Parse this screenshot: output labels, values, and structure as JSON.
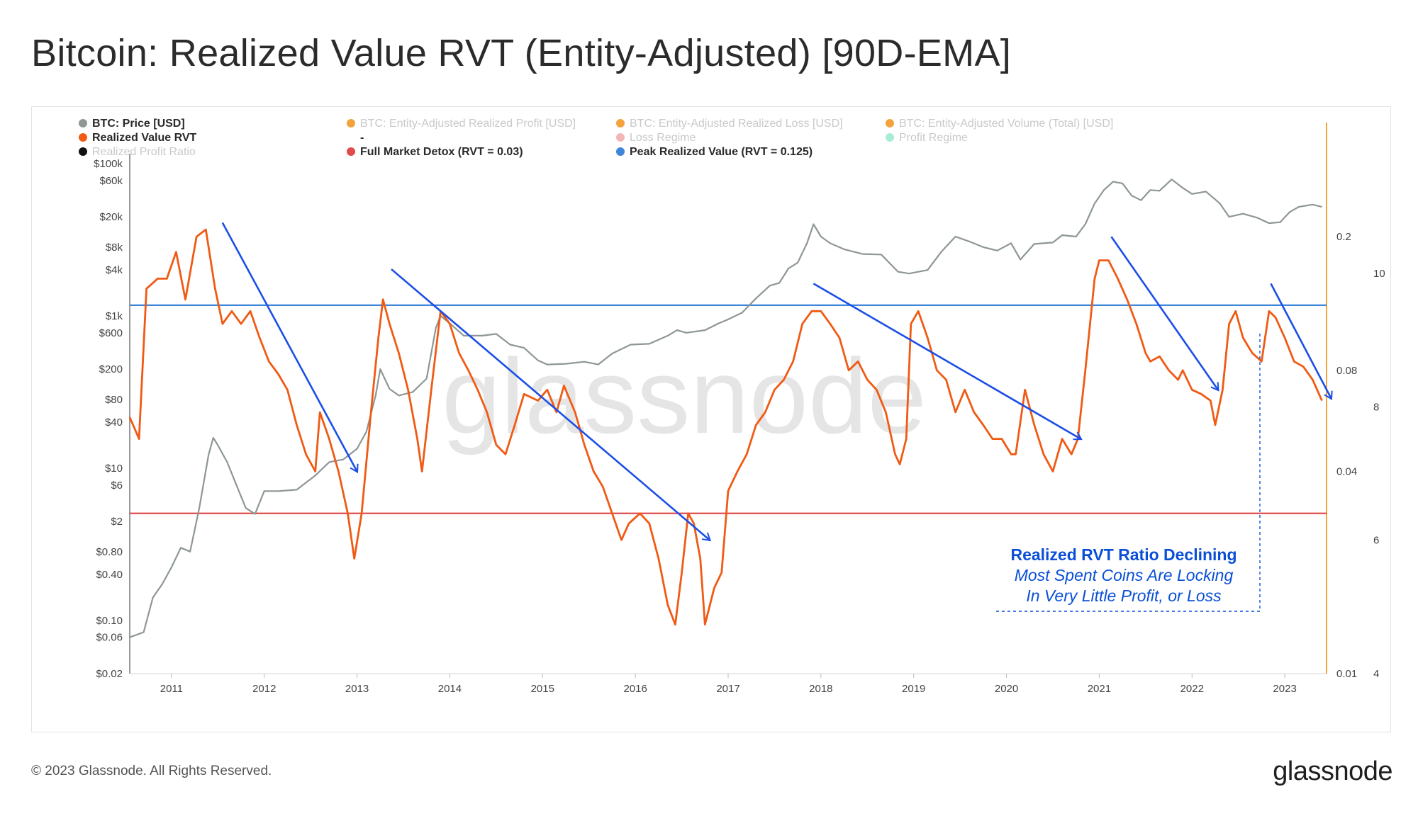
{
  "page": {
    "title": "Bitcoin: Realized Value RVT (Entity-Adjusted) [90D-EMA]",
    "copyright": "© 2023 Glassnode. All Rights Reserved.",
    "brand": "glassnode",
    "watermark": "glassnode"
  },
  "colors": {
    "price": "#8e9696",
    "rvt": "#f05a14",
    "detox": "#e04b4b",
    "peak": "#3f86d9",
    "arrow": "#1b4fe6",
    "axis_right": "#f4a23c",
    "annotation": "#0a4fd6"
  },
  "chart_data": {
    "type": "line",
    "title": "Bitcoin: Realized Value RVT (Entity-Adjusted) [90D-EMA]",
    "legend": [
      {
        "label": "BTC: Price [USD]",
        "color": "#8e9696",
        "active": true
      },
      {
        "label": "BTC: Entity-Adjusted Realized Profit [USD]",
        "color": "#f4a23c",
        "active": false
      },
      {
        "label": "BTC: Entity-Adjusted Realized Loss [USD]",
        "color": "#f4a23c",
        "active": false
      },
      {
        "label": "BTC: Entity-Adjusted Volume (Total) [USD]",
        "color": "#f4a23c",
        "active": false
      },
      {
        "label": "Realized Value RVT",
        "color": "#f05a14",
        "active": true
      },
      {
        "label": "-",
        "color": "",
        "active": true
      },
      {
        "label": "Loss Regime",
        "color": "#f3b6b6",
        "active": false
      },
      {
        "label": "Profit Regime",
        "color": "#a9ecd5",
        "active": false
      },
      {
        "label": "Realized Profit Ratio",
        "color": "#111111",
        "active": false
      },
      {
        "label": "Full Market Detox (RVT = 0.03)",
        "color": "#e04b4b",
        "active": true
      },
      {
        "label": "Peak Realized Value (RVT = 0.125)",
        "color": "#3f86d9",
        "active": true
      }
    ],
    "x_ticks": [
      "2011",
      "2012",
      "2013",
      "2014",
      "2015",
      "2016",
      "2017",
      "2018",
      "2019",
      "2020",
      "2021",
      "2022",
      "2023"
    ],
    "x_range": [
      2010.6,
      2023.5
    ],
    "price_axis": {
      "scale": "log",
      "range": [
        0.02,
        100000
      ],
      "tick_values": [
        100000,
        60000,
        20000,
        8000,
        4000,
        1000,
        600,
        200,
        80,
        40,
        10,
        6,
        2,
        0.8,
        0.4,
        0.1,
        0.06,
        0.02
      ],
      "tick_labels": [
        "$100k",
        "$60k",
        "$20k",
        "$8k",
        "$4k",
        "$1k",
        "$600",
        "$200",
        "$80",
        "$40",
        "$10",
        "$6",
        "$2",
        "$0.80",
        "$0.40",
        "$0.10",
        "$0.06",
        "$0.02"
      ]
    },
    "rvt_axis": {
      "scale": "log",
      "range": [
        0.01,
        0.33
      ],
      "tick_values": [
        0.2,
        0.08,
        0.04,
        0.01
      ],
      "tick_labels": [
        "0.2",
        "0.08",
        "0.04",
        "0.01"
      ]
    },
    "right_axis": {
      "tick_labels": [
        "10",
        "8",
        "6",
        "4"
      ]
    },
    "reference_lines": [
      {
        "name": "Full Market Detox (RVT = 0.03)",
        "rvt": 0.03,
        "color": "#e04b4b"
      },
      {
        "name": "Peak Realized Value (RVT = 0.125)",
        "rvt": 0.125,
        "color": "#3f86d9"
      }
    ],
    "series": [
      {
        "name": "BTC: Price [USD]",
        "color": "#8e9696",
        "points": [
          [
            2010.6,
            0.06
          ],
          [
            2010.75,
            0.07
          ],
          [
            2010.85,
            0.2
          ],
          [
            2010.95,
            0.3
          ],
          [
            2011.05,
            0.5
          ],
          [
            2011.15,
            0.9
          ],
          [
            2011.25,
            0.8
          ],
          [
            2011.35,
            3
          ],
          [
            2011.45,
            15
          ],
          [
            2011.5,
            25
          ],
          [
            2011.55,
            20
          ],
          [
            2011.65,
            12
          ],
          [
            2011.75,
            6
          ],
          [
            2011.85,
            3
          ],
          [
            2011.95,
            2.5
          ],
          [
            2012.05,
            5
          ],
          [
            2012.2,
            5
          ],
          [
            2012.4,
            5.2
          ],
          [
            2012.6,
            8
          ],
          [
            2012.75,
            12
          ],
          [
            2012.9,
            13
          ],
          [
            2013.05,
            18
          ],
          [
            2013.15,
            30
          ],
          [
            2013.25,
            90
          ],
          [
            2013.3,
            200
          ],
          [
            2013.4,
            110
          ],
          [
            2013.5,
            90
          ],
          [
            2013.65,
            100
          ],
          [
            2013.8,
            150
          ],
          [
            2013.9,
            700
          ],
          [
            2013.95,
            1000
          ],
          [
            2014.05,
            800
          ],
          [
            2014.2,
            550
          ],
          [
            2014.4,
            550
          ],
          [
            2014.55,
            580
          ],
          [
            2014.7,
            420
          ],
          [
            2014.85,
            380
          ],
          [
            2015.0,
            260
          ],
          [
            2015.1,
            230
          ],
          [
            2015.3,
            235
          ],
          [
            2015.5,
            250
          ],
          [
            2015.65,
            230
          ],
          [
            2015.8,
            320
          ],
          [
            2016.0,
            420
          ],
          [
            2016.2,
            430
          ],
          [
            2016.4,
            550
          ],
          [
            2016.5,
            650
          ],
          [
            2016.6,
            600
          ],
          [
            2016.8,
            650
          ],
          [
            2016.95,
            800
          ],
          [
            2017.05,
            900
          ],
          [
            2017.2,
            1100
          ],
          [
            2017.35,
            1700
          ],
          [
            2017.5,
            2500
          ],
          [
            2017.6,
            2700
          ],
          [
            2017.7,
            4200
          ],
          [
            2017.8,
            5000
          ],
          [
            2017.9,
            9000
          ],
          [
            2017.97,
            16000
          ],
          [
            2018.05,
            11000
          ],
          [
            2018.15,
            9000
          ],
          [
            2018.3,
            7500
          ],
          [
            2018.5,
            6500
          ],
          [
            2018.7,
            6400
          ],
          [
            2018.88,
            3800
          ],
          [
            2019.0,
            3600
          ],
          [
            2019.2,
            4000
          ],
          [
            2019.35,
            7000
          ],
          [
            2019.5,
            11000
          ],
          [
            2019.65,
            9500
          ],
          [
            2019.8,
            8000
          ],
          [
            2019.95,
            7200
          ],
          [
            2020.1,
            9000
          ],
          [
            2020.2,
            5500
          ],
          [
            2020.35,
            8800
          ],
          [
            2020.55,
            9200
          ],
          [
            2020.65,
            11500
          ],
          [
            2020.8,
            11000
          ],
          [
            2020.9,
            16000
          ],
          [
            2021.0,
            30000
          ],
          [
            2021.1,
            45000
          ],
          [
            2021.2,
            58000
          ],
          [
            2021.3,
            55000
          ],
          [
            2021.4,
            38000
          ],
          [
            2021.5,
            33000
          ],
          [
            2021.6,
            45000
          ],
          [
            2021.7,
            44000
          ],
          [
            2021.83,
            62000
          ],
          [
            2021.95,
            48000
          ],
          [
            2022.05,
            40000
          ],
          [
            2022.2,
            43000
          ],
          [
            2022.35,
            30000
          ],
          [
            2022.45,
            20000
          ],
          [
            2022.6,
            22000
          ],
          [
            2022.75,
            19500
          ],
          [
            2022.88,
            16500
          ],
          [
            2023.0,
            17000
          ],
          [
            2023.1,
            23000
          ],
          [
            2023.2,
            27000
          ],
          [
            2023.35,
            29000
          ],
          [
            2023.45,
            27000
          ]
        ]
      },
      {
        "name": "Realized Value RVT",
        "color": "#f05a14",
        "points": [
          [
            2010.6,
            0.058
          ],
          [
            2010.7,
            0.05
          ],
          [
            2010.78,
            0.14
          ],
          [
            2010.9,
            0.15
          ],
          [
            2011.0,
            0.15
          ],
          [
            2011.1,
            0.18
          ],
          [
            2011.2,
            0.13
          ],
          [
            2011.32,
            0.2
          ],
          [
            2011.42,
            0.21
          ],
          [
            2011.52,
            0.14
          ],
          [
            2011.6,
            0.11
          ],
          [
            2011.7,
            0.12
          ],
          [
            2011.8,
            0.11
          ],
          [
            2011.9,
            0.12
          ],
          [
            2012.0,
            0.1
          ],
          [
            2012.1,
            0.085
          ],
          [
            2012.2,
            0.078
          ],
          [
            2012.3,
            0.07
          ],
          [
            2012.4,
            0.055
          ],
          [
            2012.5,
            0.045
          ],
          [
            2012.6,
            0.04
          ],
          [
            2012.65,
            0.06
          ],
          [
            2012.75,
            0.05
          ],
          [
            2012.85,
            0.04
          ],
          [
            2012.95,
            0.03
          ],
          [
            2013.02,
            0.022
          ],
          [
            2013.1,
            0.03
          ],
          [
            2013.2,
            0.06
          ],
          [
            2013.28,
            0.1
          ],
          [
            2013.33,
            0.13
          ],
          [
            2013.4,
            0.11
          ],
          [
            2013.5,
            0.09
          ],
          [
            2013.6,
            0.07
          ],
          [
            2013.7,
            0.05
          ],
          [
            2013.75,
            0.04
          ],
          [
            2013.85,
            0.07
          ],
          [
            2013.95,
            0.12
          ],
          [
            2014.05,
            0.11
          ],
          [
            2014.15,
            0.09
          ],
          [
            2014.25,
            0.08
          ],
          [
            2014.35,
            0.07
          ],
          [
            2014.45,
            0.06
          ],
          [
            2014.55,
            0.048
          ],
          [
            2014.65,
            0.045
          ],
          [
            2014.75,
            0.055
          ],
          [
            2014.85,
            0.068
          ],
          [
            2015.0,
            0.065
          ],
          [
            2015.1,
            0.07
          ],
          [
            2015.2,
            0.06
          ],
          [
            2015.28,
            0.072
          ],
          [
            2015.4,
            0.06
          ],
          [
            2015.5,
            0.048
          ],
          [
            2015.6,
            0.04
          ],
          [
            2015.7,
            0.036
          ],
          [
            2015.8,
            0.03
          ],
          [
            2015.9,
            0.025
          ],
          [
            2015.98,
            0.028
          ],
          [
            2016.1,
            0.03
          ],
          [
            2016.2,
            0.028
          ],
          [
            2016.3,
            0.022
          ],
          [
            2016.4,
            0.016
          ],
          [
            2016.48,
            0.014
          ],
          [
            2016.55,
            0.02
          ],
          [
            2016.62,
            0.03
          ],
          [
            2016.68,
            0.028
          ],
          [
            2016.75,
            0.022
          ],
          [
            2016.8,
            0.014
          ],
          [
            2016.9,
            0.018
          ],
          [
            2016.98,
            0.02
          ],
          [
            2017.05,
            0.035
          ],
          [
            2017.15,
            0.04
          ],
          [
            2017.25,
            0.045
          ],
          [
            2017.35,
            0.055
          ],
          [
            2017.45,
            0.06
          ],
          [
            2017.55,
            0.07
          ],
          [
            2017.65,
            0.075
          ],
          [
            2017.75,
            0.085
          ],
          [
            2017.85,
            0.11
          ],
          [
            2017.95,
            0.12
          ],
          [
            2018.05,
            0.12
          ],
          [
            2018.15,
            0.11
          ],
          [
            2018.25,
            0.1
          ],
          [
            2018.35,
            0.08
          ],
          [
            2018.45,
            0.085
          ],
          [
            2018.55,
            0.075
          ],
          [
            2018.65,
            0.07
          ],
          [
            2018.75,
            0.06
          ],
          [
            2018.85,
            0.045
          ],
          [
            2018.9,
            0.042
          ],
          [
            2018.97,
            0.05
          ],
          [
            2019.02,
            0.11
          ],
          [
            2019.1,
            0.12
          ],
          [
            2019.2,
            0.1
          ],
          [
            2019.3,
            0.08
          ],
          [
            2019.4,
            0.075
          ],
          [
            2019.5,
            0.06
          ],
          [
            2019.6,
            0.07
          ],
          [
            2019.7,
            0.06
          ],
          [
            2019.8,
            0.055
          ],
          [
            2019.9,
            0.05
          ],
          [
            2020.0,
            0.05
          ],
          [
            2020.1,
            0.045
          ],
          [
            2020.15,
            0.045
          ],
          [
            2020.25,
            0.07
          ],
          [
            2020.35,
            0.055
          ],
          [
            2020.45,
            0.045
          ],
          [
            2020.55,
            0.04
          ],
          [
            2020.65,
            0.05
          ],
          [
            2020.75,
            0.045
          ],
          [
            2020.82,
            0.05
          ],
          [
            2020.9,
            0.08
          ],
          [
            2021.0,
            0.15
          ],
          [
            2021.05,
            0.17
          ],
          [
            2021.15,
            0.17
          ],
          [
            2021.25,
            0.15
          ],
          [
            2021.35,
            0.13
          ],
          [
            2021.45,
            0.11
          ],
          [
            2021.55,
            0.09
          ],
          [
            2021.6,
            0.085
          ],
          [
            2021.7,
            0.088
          ],
          [
            2021.8,
            0.08
          ],
          [
            2021.9,
            0.075
          ],
          [
            2021.95,
            0.08
          ],
          [
            2022.05,
            0.07
          ],
          [
            2022.15,
            0.068
          ],
          [
            2022.25,
            0.065
          ],
          [
            2022.3,
            0.055
          ],
          [
            2022.38,
            0.07
          ],
          [
            2022.45,
            0.11
          ],
          [
            2022.52,
            0.12
          ],
          [
            2022.6,
            0.1
          ],
          [
            2022.7,
            0.09
          ],
          [
            2022.8,
            0.085
          ],
          [
            2022.88,
            0.12
          ],
          [
            2022.95,
            0.115
          ],
          [
            2023.05,
            0.1
          ],
          [
            2023.15,
            0.085
          ],
          [
            2023.25,
            0.082
          ],
          [
            2023.35,
            0.075
          ],
          [
            2023.45,
            0.065
          ]
        ]
      }
    ],
    "trend_arrows": [
      [
        [
          2011.6,
          0.22
        ],
        [
          2013.05,
          0.04
        ]
      ],
      [
        [
          2013.42,
          0.16
        ],
        [
          2016.85,
          0.025
        ]
      ],
      [
        [
          2017.97,
          0.145
        ],
        [
          2020.85,
          0.05
        ]
      ],
      [
        [
          2021.18,
          0.2
        ],
        [
          2022.33,
          0.07
        ]
      ],
      [
        [
          2022.9,
          0.145
        ],
        [
          2023.55,
          0.066
        ]
      ]
    ],
    "annotation": {
      "title": "Realized RVT Ratio Declining",
      "line1": "Most Spent Coins Are Locking",
      "line2": "In Very Little Profit, or Loss"
    }
  }
}
